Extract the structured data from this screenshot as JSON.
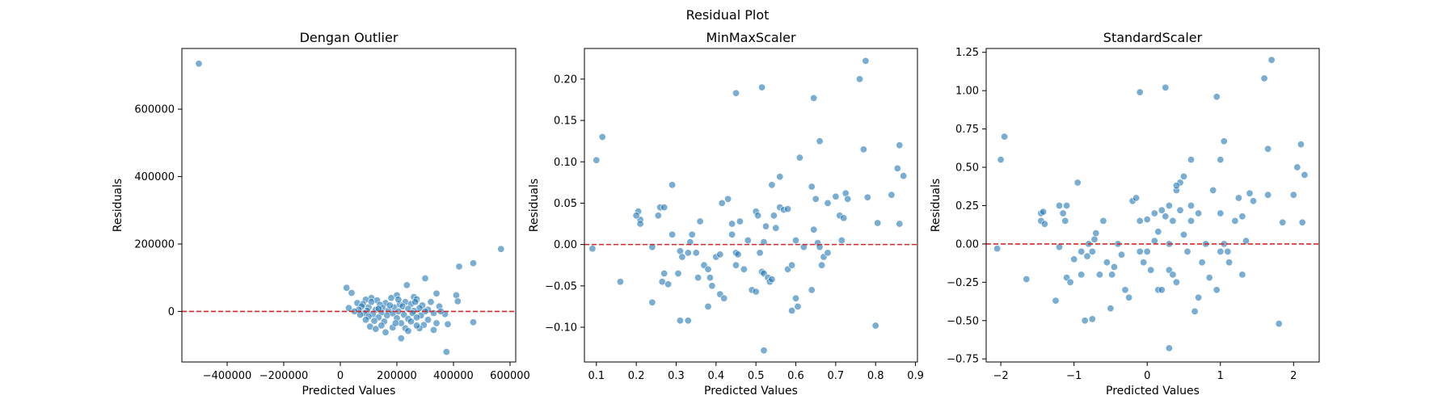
{
  "figure": {
    "title": "Residual Plot"
  },
  "chart_data": [
    {
      "type": "scatter",
      "title": "Dengan Outlier",
      "xlabel": "Predicted Values",
      "ylabel": "Residuals",
      "xlim": [
        -560000,
        620000
      ],
      "ylim": [
        -150000,
        780000
      ],
      "xticks": [
        -400000,
        -200000,
        0,
        200000,
        400000,
        600000
      ],
      "xticklabels": [
        "−400000",
        "−200000",
        "0",
        "200000",
        "400000",
        "600000"
      ],
      "yticks": [
        0,
        200000,
        400000,
        600000
      ],
      "yticklabels": [
        "0",
        "200000",
        "400000",
        "600000"
      ],
      "hline": 0,
      "points": [
        [
          -500000,
          735000
        ],
        [
          568000,
          185000
        ],
        [
          470000,
          143000
        ],
        [
          420000,
          133000
        ],
        [
          300000,
          98000
        ],
        [
          235000,
          78000
        ],
        [
          22000,
          70000
        ],
        [
          40000,
          55000
        ],
        [
          340000,
          53000
        ],
        [
          410000,
          48000
        ],
        [
          200000,
          48000
        ],
        [
          260000,
          43000
        ],
        [
          180000,
          40000
        ],
        [
          110000,
          40000
        ],
        [
          90000,
          35000
        ],
        [
          130000,
          33000
        ],
        [
          270000,
          36000
        ],
        [
          320000,
          28000
        ],
        [
          415000,
          30000
        ],
        [
          230000,
          28000
        ],
        [
          160000,
          25000
        ],
        [
          60000,
          25000
        ],
        [
          80000,
          22000
        ],
        [
          140000,
          20000
        ],
        [
          210000,
          21000
        ],
        [
          250000,
          22000
        ],
        [
          290000,
          18000
        ],
        [
          350000,
          15000
        ],
        [
          30000,
          10000
        ],
        [
          75000,
          15000
        ],
        [
          100000,
          12000
        ],
        [
          150000,
          10000
        ],
        [
          190000,
          12000
        ],
        [
          220000,
          15000
        ],
        [
          240000,
          8000
        ],
        [
          280000,
          10000
        ],
        [
          310000,
          5000
        ],
        [
          65000,
          5000
        ],
        [
          95000,
          2000
        ],
        [
          125000,
          5000
        ],
        [
          170000,
          3000
        ],
        [
          205000,
          0
        ],
        [
          260000,
          2000
        ],
        [
          300000,
          0
        ],
        [
          330000,
          -5000
        ],
        [
          85000,
          -5000
        ],
        [
          115000,
          -8000
        ],
        [
          145000,
          -3000
        ],
        [
          185000,
          -6000
        ],
        [
          225000,
          -10000
        ],
        [
          255000,
          -5000
        ],
        [
          285000,
          -12000
        ],
        [
          370000,
          -8000
        ],
        [
          100000,
          -15000
        ],
        [
          135000,
          -18000
        ],
        [
          165000,
          -12000
        ],
        [
          200000,
          -20000
        ],
        [
          240000,
          -22000
        ],
        [
          270000,
          -18000
        ],
        [
          310000,
          -25000
        ],
        [
          90000,
          -25000
        ],
        [
          120000,
          -28000
        ],
        [
          155000,
          -30000
        ],
        [
          215000,
          -35000
        ],
        [
          250000,
          -30000
        ],
        [
          295000,
          -40000
        ],
        [
          340000,
          -35000
        ],
        [
          380000,
          -38000
        ],
        [
          470000,
          -32000
        ],
        [
          105000,
          -45000
        ],
        [
          145000,
          -42000
        ],
        [
          185000,
          -48000
        ],
        [
          230000,
          -50000
        ],
        [
          280000,
          -50000
        ],
        [
          330000,
          -55000
        ],
        [
          160000,
          -62000
        ],
        [
          240000,
          -58000
        ],
        [
          215000,
          -80000
        ],
        [
          375000,
          -120000
        ],
        [
          125000,
          -52000
        ],
        [
          270000,
          -42000
        ],
        [
          195000,
          -35000
        ],
        [
          110000,
          28000
        ],
        [
          175000,
          18000
        ],
        [
          265000,
          28000
        ],
        [
          355000,
          0
        ],
        [
          50000,
          0
        ],
        [
          70000,
          -10000
        ],
        [
          205000,
          35000
        ],
        [
          135000,
          8000
        ]
      ]
    },
    {
      "type": "scatter",
      "title": "MinMaxScaler",
      "xlabel": "Predicted Values",
      "ylabel": "Residuals",
      "xlim": [
        0.07,
        0.905
      ],
      "ylim": [
        -0.142,
        0.237
      ],
      "xticks": [
        0.1,
        0.2,
        0.3,
        0.4,
        0.5,
        0.6,
        0.7,
        0.8,
        0.9
      ],
      "xticklabels": [
        "0.1",
        "0.2",
        "0.3",
        "0.4",
        "0.5",
        "0.6",
        "0.7",
        "0.8",
        "0.9"
      ],
      "yticks": [
        -0.1,
        -0.05,
        0.0,
        0.05,
        0.1,
        0.15,
        0.2
      ],
      "yticklabels": [
        "−0.10",
        "−0.05",
        "0.00",
        "0.05",
        "0.10",
        "0.15",
        "0.20"
      ],
      "hline": 0,
      "points": [
        [
          0.1,
          0.102
        ],
        [
          0.115,
          0.13
        ],
        [
          0.09,
          -0.005
        ],
        [
          0.16,
          -0.045
        ],
        [
          0.205,
          0.04
        ],
        [
          0.21,
          0.03
        ],
        [
          0.2,
          0.035
        ],
        [
          0.21,
          0.025
        ],
        [
          0.24,
          -0.003
        ],
        [
          0.24,
          -0.07
        ],
        [
          0.26,
          0.045
        ],
        [
          0.27,
          0.045
        ],
        [
          0.255,
          0.035
        ],
        [
          0.265,
          -0.045
        ],
        [
          0.27,
          -0.035
        ],
        [
          0.28,
          -0.048
        ],
        [
          0.29,
          0.072
        ],
        [
          0.29,
          0.012
        ],
        [
          0.31,
          -0.008
        ],
        [
          0.305,
          -0.035
        ],
        [
          0.31,
          -0.092
        ],
        [
          0.33,
          -0.092
        ],
        [
          0.315,
          -0.015
        ],
        [
          0.33,
          -0.01
        ],
        [
          0.34,
          0.012
        ],
        [
          0.335,
          0.003
        ],
        [
          0.35,
          -0.01
        ],
        [
          0.355,
          -0.04
        ],
        [
          0.36,
          0.028
        ],
        [
          0.37,
          -0.025
        ],
        [
          0.38,
          -0.03
        ],
        [
          0.38,
          -0.075
        ],
        [
          0.385,
          -0.04
        ],
        [
          0.39,
          -0.05
        ],
        [
          0.4,
          -0.015
        ],
        [
          0.41,
          -0.012
        ],
        [
          0.41,
          -0.06
        ],
        [
          0.415,
          0.05
        ],
        [
          0.42,
          -0.065
        ],
        [
          0.43,
          0.055
        ],
        [
          0.44,
          0.012
        ],
        [
          0.44,
          0.025
        ],
        [
          0.45,
          -0.01
        ],
        [
          0.45,
          -0.025
        ],
        [
          0.455,
          -0.012
        ],
        [
          0.46,
          0.028
        ],
        [
          0.47,
          -0.03
        ],
        [
          0.48,
          0.005
        ],
        [
          0.49,
          -0.055
        ],
        [
          0.5,
          -0.057
        ],
        [
          0.5,
          0.04
        ],
        [
          0.505,
          0.035
        ],
        [
          0.51,
          -0.01
        ],
        [
          0.515,
          -0.033
        ],
        [
          0.52,
          0.003
        ],
        [
          0.52,
          -0.035
        ],
        [
          0.525,
          0.022
        ],
        [
          0.53,
          -0.04
        ],
        [
          0.535,
          -0.045
        ],
        [
          0.54,
          -0.042
        ],
        [
          0.54,
          0.072
        ],
        [
          0.545,
          0.035
        ],
        [
          0.55,
          0.02
        ],
        [
          0.56,
          0.045
        ],
        [
          0.57,
          0.042
        ],
        [
          0.58,
          -0.03
        ],
        [
          0.58,
          0.043
        ],
        [
          0.59,
          -0.025
        ],
        [
          0.6,
          -0.065
        ],
        [
          0.6,
          0.005
        ],
        [
          0.605,
          -0.075
        ],
        [
          0.61,
          0.105
        ],
        [
          0.62,
          -0.003
        ],
        [
          0.64,
          -0.055
        ],
        [
          0.64,
          0.07
        ],
        [
          0.645,
          0.018
        ],
        [
          0.65,
          0.055
        ],
        [
          0.655,
          0.002
        ],
        [
          0.66,
          -0.003
        ],
        [
          0.66,
          0.125
        ],
        [
          0.665,
          -0.025
        ],
        [
          0.67,
          -0.015
        ],
        [
          0.68,
          -0.01
        ],
        [
          0.68,
          0.05
        ],
        [
          0.7,
          0.058
        ],
        [
          0.71,
          0.035
        ],
        [
          0.715,
          0.005
        ],
        [
          0.72,
          0.032
        ],
        [
          0.725,
          0.062
        ],
        [
          0.73,
          0.055
        ],
        [
          0.76,
          0.2
        ],
        [
          0.77,
          0.115
        ],
        [
          0.78,
          0.057
        ],
        [
          0.8,
          -0.098
        ],
        [
          0.805,
          0.026
        ],
        [
          0.84,
          0.06
        ],
        [
          0.855,
          0.092
        ],
        [
          0.86,
          0.12
        ],
        [
          0.87,
          0.083
        ],
        [
          0.86,
          0.025
        ],
        [
          0.775,
          0.222
        ],
        [
          0.45,
          0.183
        ],
        [
          0.515,
          0.19
        ],
        [
          0.645,
          0.177
        ],
        [
          0.52,
          -0.128
        ],
        [
          0.59,
          -0.08
        ],
        [
          0.56,
          0.082
        ]
      ]
    },
    {
      "type": "scatter",
      "title": "StandardScaler",
      "xlabel": "Predicted Values",
      "ylabel": "Residuals",
      "xlim": [
        -2.2,
        2.35
      ],
      "ylim": [
        -0.77,
        1.275
      ],
      "xticks": [
        -2,
        -1,
        0,
        1,
        2
      ],
      "xticklabels": [
        "−2",
        "−1",
        "0",
        "1",
        "2"
      ],
      "yticks": [
        -0.75,
        -0.5,
        -0.25,
        0.0,
        0.25,
        0.5,
        0.75,
        1.0,
        1.25
      ],
      "yticklabels": [
        "−0.75",
        "−0.50",
        "−0.25",
        "0.00",
        "0.25",
        "0.50",
        "0.75",
        "1.00",
        "1.25"
      ],
      "hline": 0,
      "points": [
        [
          -2.05,
          -0.03
        ],
        [
          -2.0,
          0.55
        ],
        [
          -1.95,
          0.7
        ],
        [
          -1.65,
          -0.23
        ],
        [
          -1.45,
          0.2
        ],
        [
          -1.45,
          0.15
        ],
        [
          -1.42,
          0.21
        ],
        [
          -1.4,
          0.13
        ],
        [
          -1.25,
          -0.37
        ],
        [
          -1.2,
          -0.02
        ],
        [
          -1.2,
          0.25
        ],
        [
          -1.15,
          0.2
        ],
        [
          -1.12,
          0.15
        ],
        [
          -1.1,
          0.25
        ],
        [
          -1.1,
          -0.22
        ],
        [
          -1.05,
          -0.25
        ],
        [
          -1.0,
          -0.1
        ],
        [
          -0.95,
          0.4
        ],
        [
          -0.9,
          -0.05
        ],
        [
          -0.9,
          -0.2
        ],
        [
          -0.85,
          -0.5
        ],
        [
          -0.82,
          -0.08
        ],
        [
          -0.8,
          0.0
        ],
        [
          -0.75,
          -0.49
        ],
        [
          -0.75,
          -0.05
        ],
        [
          -0.72,
          0.03
        ],
        [
          -0.7,
          0.07
        ],
        [
          -0.65,
          -0.2
        ],
        [
          -0.6,
          0.15
        ],
        [
          -0.55,
          -0.12
        ],
        [
          -0.5,
          -0.42
        ],
        [
          -0.48,
          -0.2
        ],
        [
          -0.45,
          -0.15
        ],
        [
          -0.4,
          0.0
        ],
        [
          -0.35,
          -0.07
        ],
        [
          -0.3,
          -0.3
        ],
        [
          -0.25,
          -0.35
        ],
        [
          -0.2,
          0.28
        ],
        [
          -0.15,
          0.3
        ],
        [
          -0.1,
          0.15
        ],
        [
          -0.1,
          -0.05
        ],
        [
          -0.05,
          -0.12
        ],
        [
          0.0,
          -0.05
        ],
        [
          0.0,
          0.16
        ],
        [
          0.05,
          -0.17
        ],
        [
          0.1,
          0.02
        ],
        [
          0.15,
          -0.3
        ],
        [
          0.2,
          0.22
        ],
        [
          0.2,
          -0.3
        ],
        [
          0.25,
          0.18
        ],
        [
          0.3,
          0.25
        ],
        [
          0.3,
          -0.17
        ],
        [
          0.35,
          0.15
        ],
        [
          0.35,
          -0.2
        ],
        [
          0.4,
          0.35
        ],
        [
          0.4,
          -0.25
        ],
        [
          0.45,
          0.22
        ],
        [
          0.5,
          0.06
        ],
        [
          0.55,
          -0.05
        ],
        [
          0.6,
          0.15
        ],
        [
          0.65,
          -0.44
        ],
        [
          0.7,
          -0.35
        ],
        [
          0.75,
          -0.12
        ],
        [
          0.8,
          0.0
        ],
        [
          0.85,
          -0.22
        ],
        [
          0.9,
          0.35
        ],
        [
          0.95,
          -0.3
        ],
        [
          1.0,
          0.2
        ],
        [
          1.0,
          -0.05
        ],
        [
          1.05,
          0.0
        ],
        [
          1.1,
          -0.05
        ],
        [
          1.12,
          -0.12
        ],
        [
          1.2,
          0.15
        ],
        [
          1.25,
          0.3
        ],
        [
          1.3,
          -0.2
        ],
        [
          1.35,
          0.02
        ],
        [
          1.4,
          0.33
        ],
        [
          1.45,
          0.28
        ],
        [
          1.6,
          1.08
        ],
        [
          1.65,
          0.62
        ],
        [
          1.7,
          1.2
        ],
        [
          1.8,
          -0.52
        ],
        [
          1.85,
          0.14
        ],
        [
          2.0,
          0.32
        ],
        [
          2.05,
          0.5
        ],
        [
          2.1,
          0.65
        ],
        [
          2.12,
          0.14
        ],
        [
          2.15,
          0.45
        ],
        [
          -0.1,
          0.99
        ],
        [
          0.25,
          1.02
        ],
        [
          0.95,
          0.96
        ],
        [
          1.05,
          0.67
        ],
        [
          1.0,
          0.55
        ],
        [
          0.45,
          0.4
        ],
        [
          0.5,
          0.44
        ],
        [
          0.3,
          -0.68
        ],
        [
          0.4,
          0.38
        ],
        [
          0.6,
          0.25
        ],
        [
          0.7,
          0.2
        ],
        [
          0.15,
          0.08
        ],
        [
          0.3,
          0.0
        ],
        [
          1.65,
          0.32
        ],
        [
          0.6,
          0.55
        ],
        [
          0.1,
          0.2
        ],
        [
          1.3,
          0.18
        ]
      ]
    }
  ]
}
